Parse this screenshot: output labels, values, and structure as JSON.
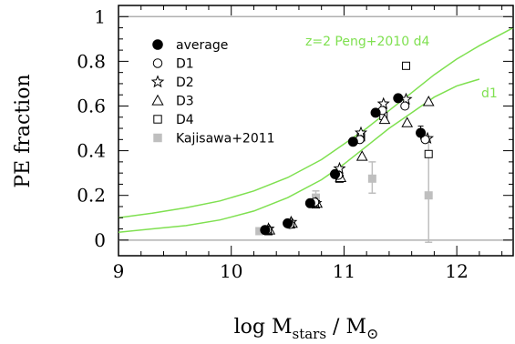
{
  "chart_data": {
    "type": "scatter",
    "xlim": [
      9,
      12.5
    ],
    "ylim": [
      -0.07,
      1.05
    ],
    "x_ticks": [
      9,
      10,
      11,
      12
    ],
    "y_ticks": [
      0,
      0.2,
      0.4,
      0.6,
      0.8,
      1
    ],
    "ylabel": "PE fraction",
    "xlabel_text": "log M",
    "xlabel_sub": "stars",
    "xlabel_tail": " / M",
    "xlabel_sun": "⊙",
    "reference_lines": [
      0,
      1
    ],
    "colors": {
      "model": "#7fe050",
      "kajisawa": "#bfbfbf",
      "ref": "#b0b0b0"
    },
    "legend": [
      {
        "label": "average",
        "marker": "filled-circle"
      },
      {
        "label": "D1",
        "marker": "open-circle"
      },
      {
        "label": "D2",
        "marker": "open-star"
      },
      {
        "label": "D3",
        "marker": "open-triangle"
      },
      {
        "label": "D4",
        "marker": "open-square"
      },
      {
        "label": "Kajisawa+2011",
        "marker": "filled-gray-square"
      }
    ],
    "series": [
      {
        "name": "average",
        "marker": "filled-circle",
        "x": [
          10.3,
          10.5,
          10.7,
          10.92,
          11.08,
          11.28,
          11.48,
          11.68
        ],
        "y": [
          0.045,
          0.075,
          0.165,
          0.295,
          0.44,
          0.57,
          0.635,
          0.48
        ],
        "yerr": [
          0,
          0,
          0,
          0,
          0,
          0,
          0,
          0.03
        ]
      },
      {
        "name": "D1",
        "marker": "open-circle",
        "x": [
          10.32,
          10.52,
          10.74,
          10.95,
          11.14,
          11.34,
          11.54,
          11.72
        ],
        "y": [
          0.045,
          0.07,
          0.17,
          0.29,
          0.45,
          0.58,
          0.6,
          0.45
        ]
      },
      {
        "name": "D2",
        "marker": "open-star",
        "x": [
          10.33,
          10.53,
          10.75,
          10.96,
          11.15,
          11.35,
          11.55,
          11.74
        ],
        "y": [
          0.05,
          0.08,
          0.165,
          0.32,
          0.48,
          0.61,
          0.63,
          0.455
        ]
      },
      {
        "name": "D3",
        "marker": "open-triangle",
        "x": [
          10.34,
          10.54,
          10.76,
          10.97,
          11.16,
          11.36,
          11.56,
          11.75
        ],
        "y": [
          0.045,
          0.075,
          0.165,
          0.28,
          0.375,
          0.54,
          0.525,
          0.62
        ]
      },
      {
        "name": "D4",
        "marker": "open-square",
        "x": [
          10.33,
          10.53,
          10.75,
          10.96,
          11.15,
          11.35,
          11.55,
          11.75
        ],
        "y": [
          0.04,
          0.07,
          0.16,
          0.275,
          0.46,
          0.555,
          0.78,
          0.385
        ]
      },
      {
        "name": "Kajisawa+2011",
        "marker": "filled-gray-square",
        "x": [
          10.25,
          10.75,
          11.25,
          11.75
        ],
        "y": [
          0.04,
          0.19,
          0.275,
          0.2
        ],
        "yerr_low": [
          0.01,
          0.03,
          0.065,
          0.21
        ],
        "yerr_high": [
          0.01,
          0.03,
          0.075,
          0.26
        ]
      }
    ],
    "model_curves": [
      {
        "label": "z=2  Peng+2010  d4",
        "x": [
          9.0,
          9.3,
          9.6,
          9.9,
          10.2,
          10.5,
          10.8,
          11.0,
          11.2,
          11.4,
          11.6,
          11.8,
          12.0,
          12.2,
          12.5
        ],
        "y": [
          0.1,
          0.12,
          0.145,
          0.175,
          0.22,
          0.28,
          0.36,
          0.43,
          0.5,
          0.58,
          0.66,
          0.74,
          0.81,
          0.87,
          0.95
        ]
      },
      {
        "label": "d1",
        "x": [
          9.0,
          9.3,
          9.6,
          9.9,
          10.2,
          10.5,
          10.8,
          11.0,
          11.2,
          11.4,
          11.6,
          11.8,
          12.0,
          12.2
        ],
        "y": [
          0.035,
          0.05,
          0.065,
          0.09,
          0.13,
          0.19,
          0.27,
          0.34,
          0.42,
          0.5,
          0.57,
          0.64,
          0.69,
          0.72
        ]
      }
    ]
  }
}
